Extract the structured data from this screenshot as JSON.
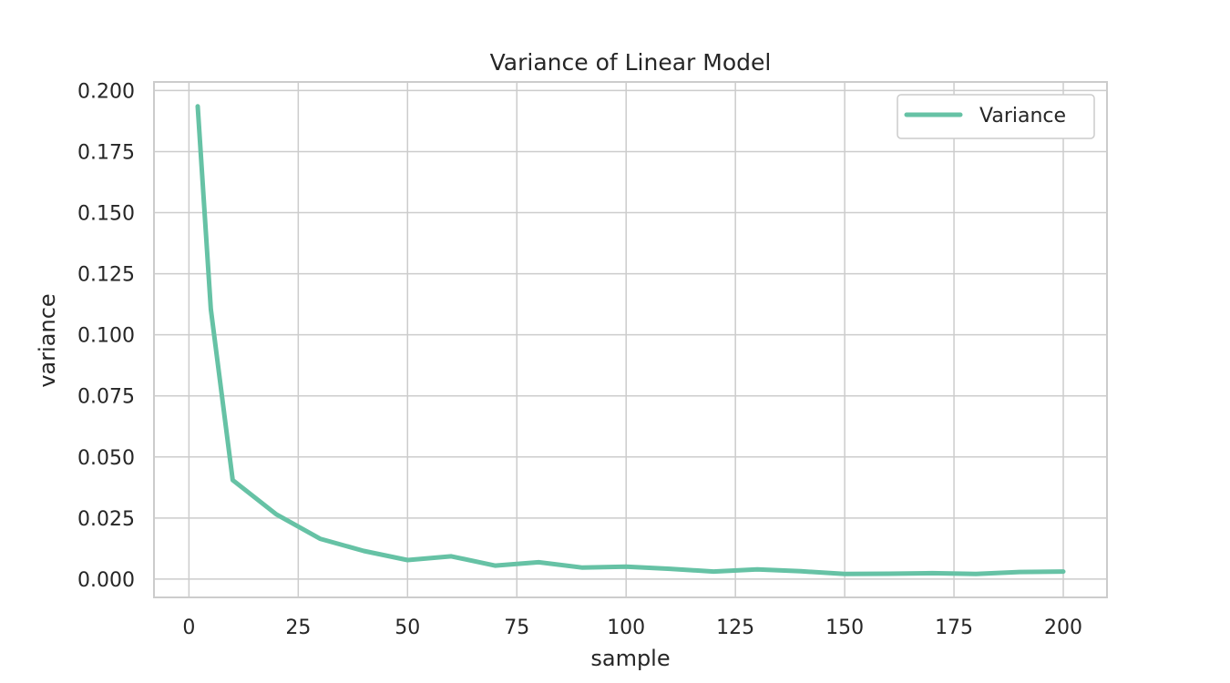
{
  "chart_data": {
    "type": "line",
    "title": "Variance of Linear Model",
    "xlabel": "sample",
    "ylabel": "variance",
    "xlim": [
      -8,
      210
    ],
    "ylim": [
      -0.0075,
      0.2035
    ],
    "xticks": [
      0,
      25,
      50,
      75,
      100,
      125,
      150,
      175,
      200
    ],
    "xtick_labels": [
      "0",
      "25",
      "50",
      "75",
      "100",
      "125",
      "150",
      "175",
      "200"
    ],
    "yticks": [
      0.0,
      0.025,
      0.05,
      0.075,
      0.1,
      0.125,
      0.15,
      0.175,
      0.2
    ],
    "ytick_labels": [
      "0.000",
      "0.025",
      "0.050",
      "0.075",
      "0.100",
      "0.125",
      "0.150",
      "0.175",
      "0.200"
    ],
    "grid": true,
    "legend_position": "top-right",
    "series": [
      {
        "name": "Variance",
        "color": "#66c2a5",
        "x": [
          2,
          5,
          10,
          20,
          30,
          40,
          50,
          60,
          70,
          80,
          90,
          100,
          110,
          120,
          130,
          140,
          150,
          160,
          170,
          180,
          190,
          200
        ],
        "y": [
          0.1935,
          0.1105,
          0.0405,
          0.0265,
          0.0165,
          0.0115,
          0.0078,
          0.0093,
          0.0055,
          0.0069,
          0.0047,
          0.0051,
          0.0042,
          0.0031,
          0.004,
          0.0032,
          0.0021,
          0.0022,
          0.0024,
          0.0021,
          0.0029,
          0.0031
        ]
      }
    ]
  }
}
